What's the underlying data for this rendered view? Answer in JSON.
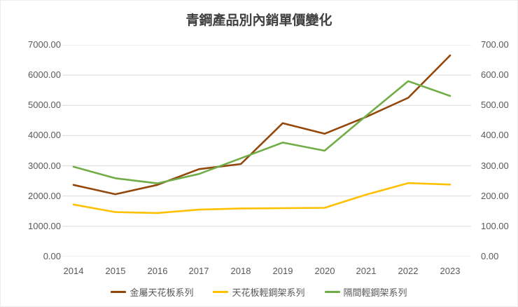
{
  "chart_data": {
    "type": "line",
    "title": "青鋼產品別內銷單價變化",
    "categories": [
      "2014",
      "2015",
      "2016",
      "2017",
      "2018",
      "2019",
      "2020",
      "2021",
      "2022",
      "2023"
    ],
    "series": [
      {
        "name": "金屬天花板系列",
        "color": "#94470B",
        "axis": "left",
        "values": [
          2370,
          2060,
          2370,
          2890,
          3060,
          4410,
          4060,
          4620,
          5250,
          6650
        ]
      },
      {
        "name": "天花板輕鋼架系列",
        "color": "#FFC000",
        "axis": "left",
        "values": [
          1720,
          1470,
          1440,
          1550,
          1590,
          1600,
          1610,
          2050,
          2430,
          2380
        ]
      },
      {
        "name": "隔間輕鋼架系列",
        "color": "#70AD47",
        "axis": "left",
        "values": [
          2970,
          2590,
          2420,
          2730,
          3250,
          3770,
          3500,
          4660,
          5800,
          5310
        ]
      }
    ],
    "left_axis": {
      "min": 0,
      "max": 7000,
      "step": 1000,
      "tick_labels": [
        "7000.00",
        "6000.00",
        "5000.00",
        "4000.00",
        "3000.00",
        "2000.00",
        "1000.00",
        "0.00"
      ]
    },
    "right_axis": {
      "min": 0,
      "max": 700,
      "step": 100,
      "tick_labels": [
        "700.00",
        "600.00",
        "500.00",
        "400.00",
        "300.00",
        "200.00",
        "100.00",
        "0.00"
      ]
    },
    "grid": true,
    "legend_position": "bottom"
  },
  "colors": {
    "title_text": "#404040",
    "axis_text": "#595959",
    "gridline": "#D9D9D9",
    "background": "#FFFFFF"
  }
}
